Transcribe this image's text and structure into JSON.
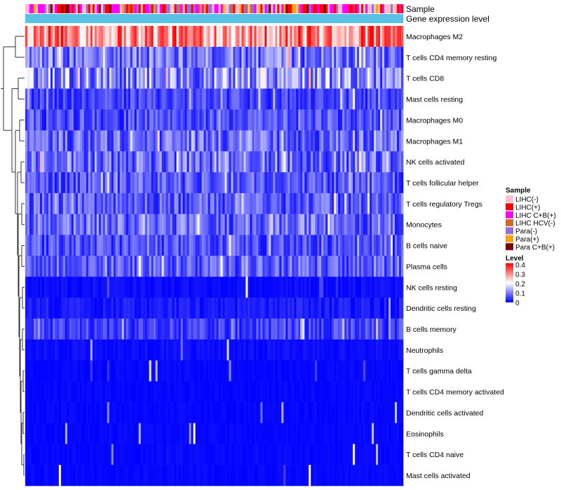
{
  "chart_data": {
    "type": "heatmap",
    "annotation_rows": [
      "Sample",
      "Gene expression level"
    ],
    "row_labels": [
      "Macrophages M2",
      "T cells CD4 memory resting",
      "T cells CD8",
      "Mast cells resting",
      "Macrophages M0",
      "Macrophages M1",
      "NK cells activated",
      "T cells follicular helper",
      "T cells regulatory  Tregs",
      "Monocytes",
      "B cells naive",
      "Plasma cells",
      "NK cells resting",
      "Dendritic cells resting",
      "B cells memory",
      "Neutrophils",
      "T cells gamma delta",
      "T cells CD4 memory activated",
      "Dendritic cells activated",
      "Eosinophils",
      "T cells CD4 naive",
      "Mast cells activated"
    ],
    "row_mean_level": [
      0.3,
      0.09,
      0.12,
      0.05,
      0.06,
      0.08,
      0.09,
      0.07,
      0.07,
      0.08,
      0.06,
      0.07,
      0.02,
      0.04,
      0.05,
      0.02,
      0.01,
      0.01,
      0.01,
      0.01,
      0.01,
      0.01
    ],
    "sample_legend": {
      "title": "Sample",
      "items": [
        {
          "label": "LIHC(-)",
          "color": "#ffc0cb"
        },
        {
          "label": "LIHC(+)",
          "color": "#ff0000"
        },
        {
          "label": "LIHC C+B(+)",
          "color": "#ff00ff"
        },
        {
          "label": "LIHC HCV(-)",
          "color": "#d2691e"
        },
        {
          "label": "Para(-)",
          "color": "#9370db"
        },
        {
          "label": "Para(+)",
          "color": "#ffa500"
        },
        {
          "label": "Para C+B(+)",
          "color": "#800000"
        }
      ]
    },
    "level_legend": {
      "title": "Level",
      "ticks": [
        "0.4",
        "0.3",
        "0.2",
        "0.1",
        "0"
      ],
      "range": [
        0,
        0.4
      ],
      "colors": [
        "#0000ff",
        "#ffffff",
        "#ff0000"
      ]
    },
    "gene_expression_bar_color": "#5bc0e6",
    "n_samples": 180
  }
}
